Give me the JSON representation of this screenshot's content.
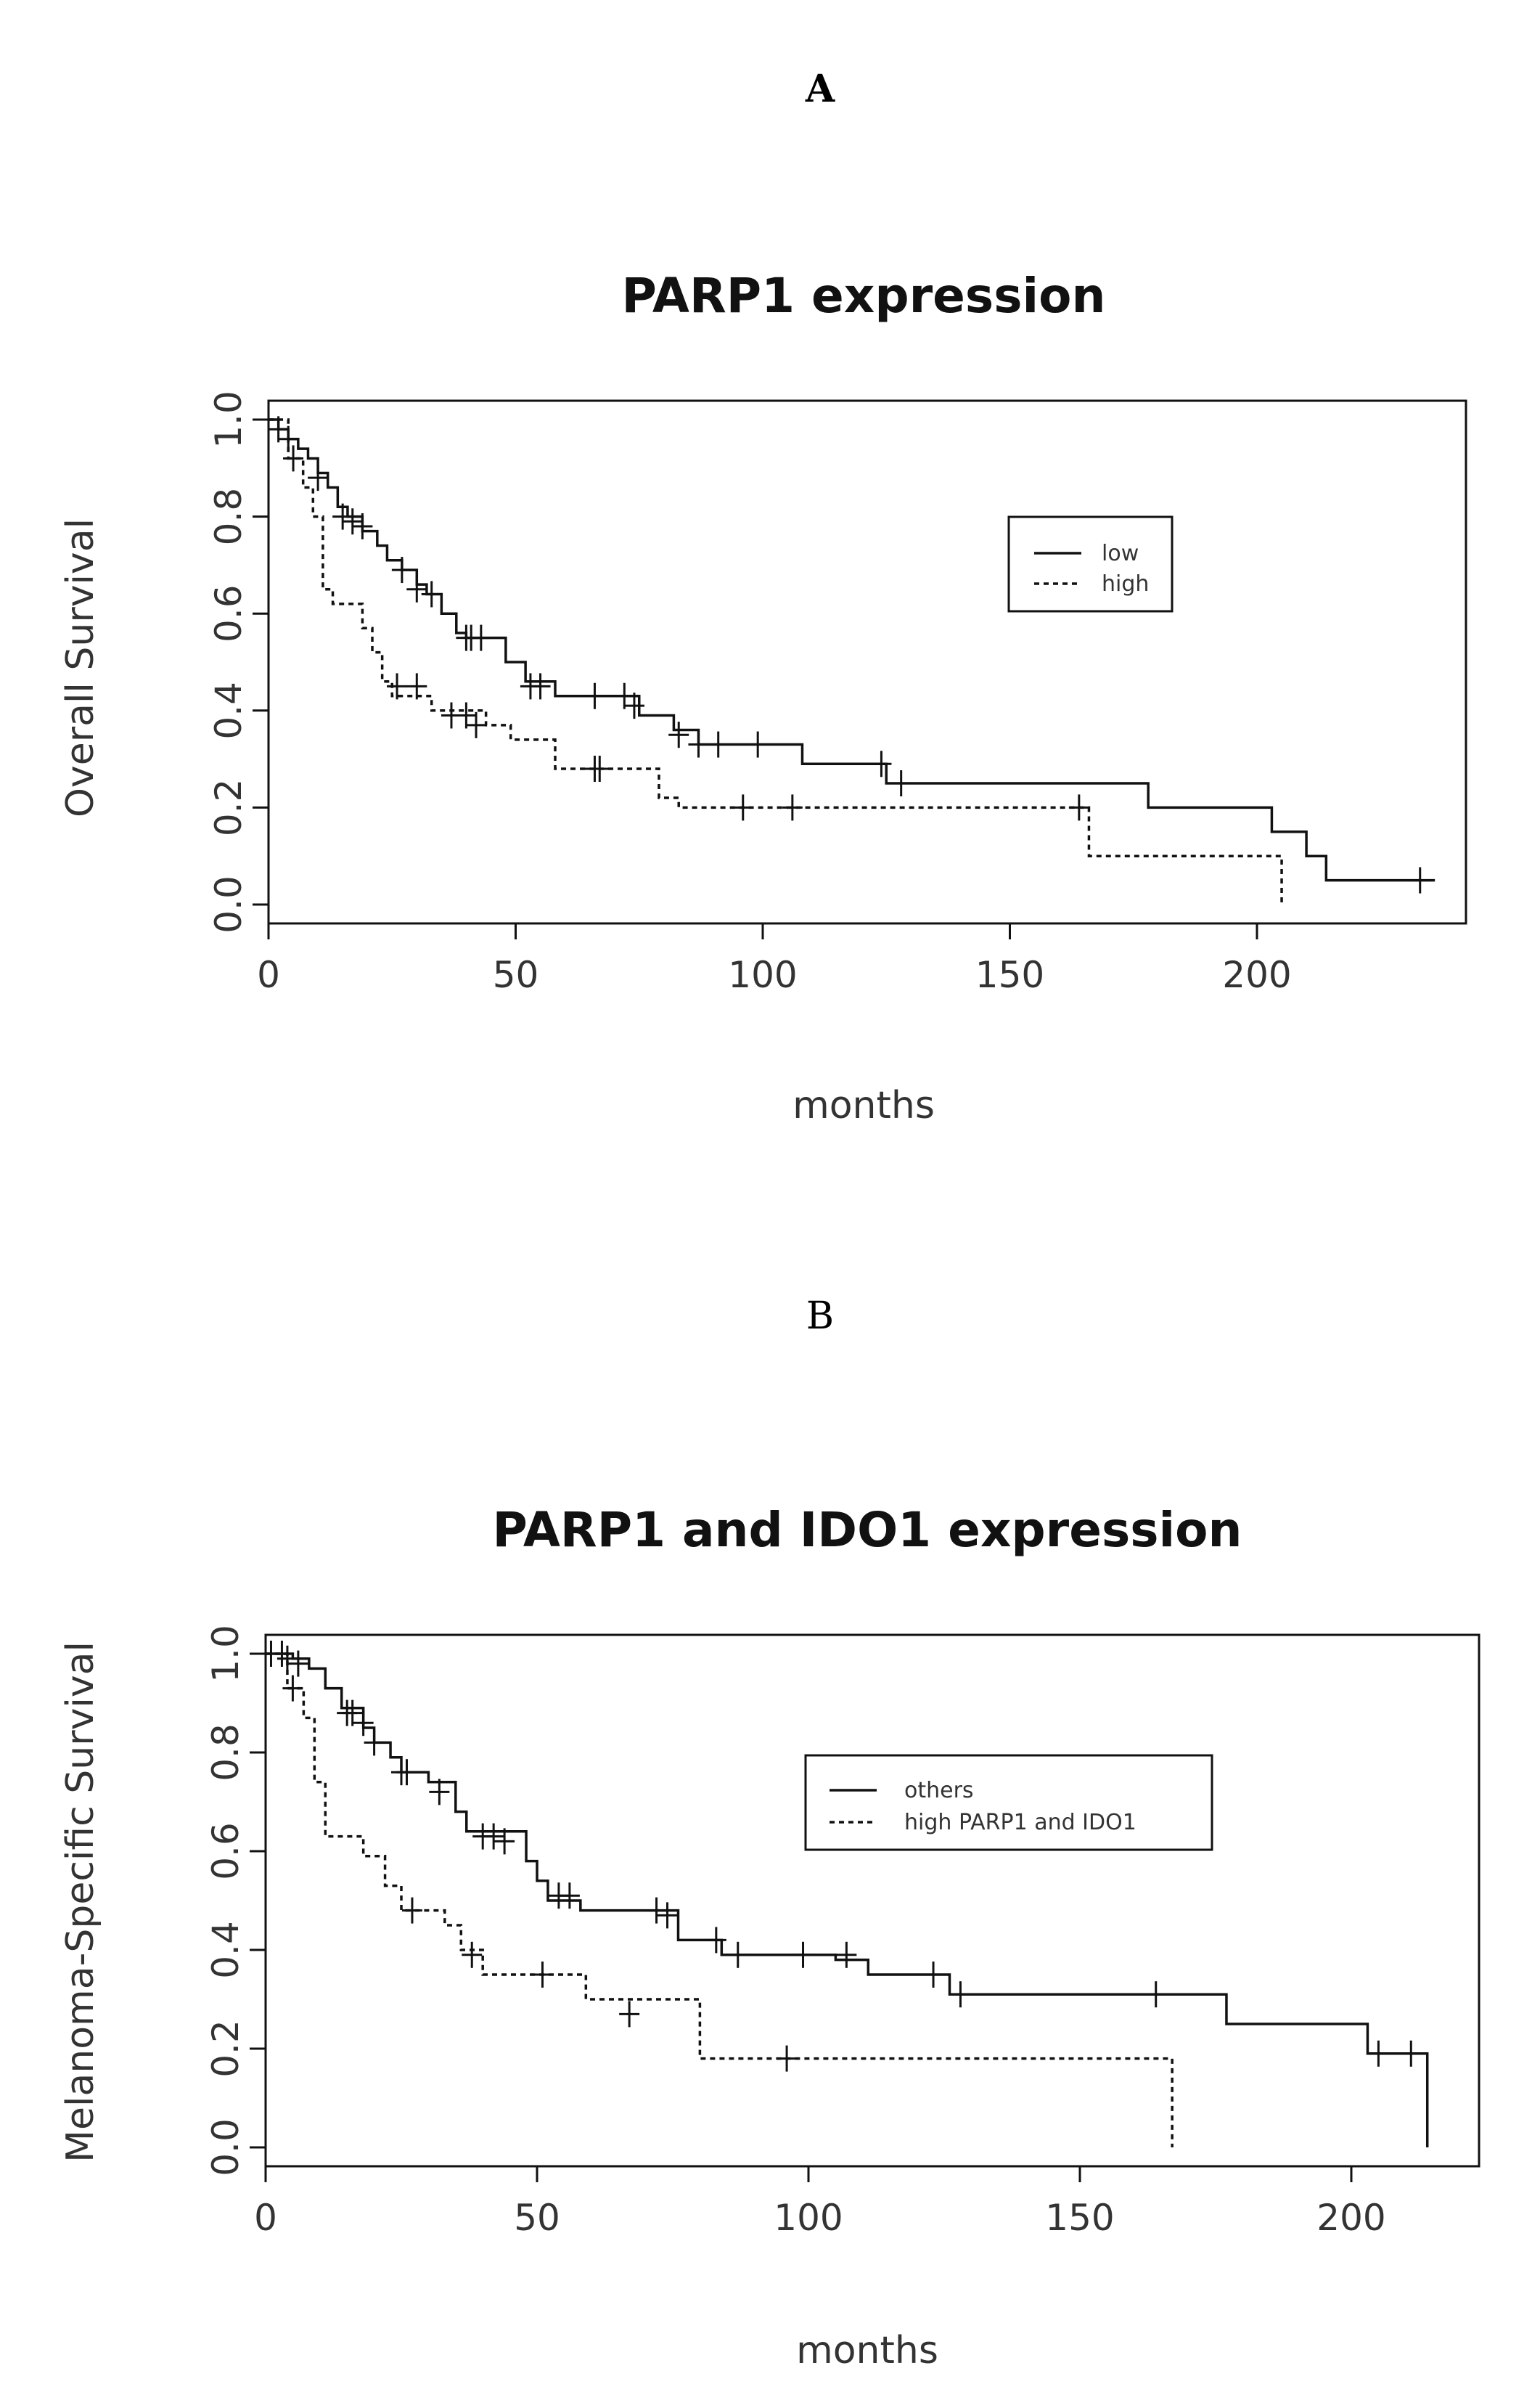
{
  "chart_data": [
    {
      "type": "line",
      "panel_label": "A",
      "title": "PARP1 expression",
      "xlabel": "months",
      "ylabel": "Overall Survival",
      "xlim": [
        0,
        240
      ],
      "ylim": [
        0,
        1.0
      ],
      "xticks": [
        0,
        50,
        100,
        150,
        200
      ],
      "yticks": [
        "0.0",
        "0.2",
        "0.4",
        "0.6",
        "0.8",
        "1.0"
      ],
      "legend_position": "top-right",
      "series": [
        {
          "name": "low",
          "style": "solid",
          "steps": [
            [
              0,
              1.0
            ],
            [
              2,
              0.98
            ],
            [
              4,
              0.96
            ],
            [
              6,
              0.94
            ],
            [
              8,
              0.92
            ],
            [
              10,
              0.89
            ],
            [
              12,
              0.86
            ],
            [
              14,
              0.82
            ],
            [
              16,
              0.8
            ],
            [
              19,
              0.77
            ],
            [
              22,
              0.74
            ],
            [
              24,
              0.71
            ],
            [
              27,
              0.69
            ],
            [
              30,
              0.66
            ],
            [
              32,
              0.64
            ],
            [
              35,
              0.6
            ],
            [
              38,
              0.56
            ],
            [
              40,
              0.55
            ],
            [
              48,
              0.5
            ],
            [
              52,
              0.46
            ],
            [
              58,
              0.43
            ],
            [
              75,
              0.39
            ],
            [
              82,
              0.36
            ],
            [
              87,
              0.33
            ],
            [
              108,
              0.29
            ],
            [
              125,
              0.25
            ],
            [
              178,
              0.2
            ],
            [
              203,
              0.15
            ],
            [
              210,
              0.1
            ],
            [
              214,
              0.05
            ],
            [
              236,
              0.05
            ]
          ],
          "censored": [
            [
              2,
              0.98
            ],
            [
              4,
              0.96
            ],
            [
              10,
              0.88
            ],
            [
              15,
              0.8
            ],
            [
              17,
              0.79
            ],
            [
              19,
              0.78
            ],
            [
              27,
              0.69
            ],
            [
              30,
              0.65
            ],
            [
              33,
              0.64
            ],
            [
              40,
              0.55
            ],
            [
              41,
              0.55
            ],
            [
              43,
              0.55
            ],
            [
              53,
              0.45
            ],
            [
              55,
              0.45
            ],
            [
              66,
              0.43
            ],
            [
              72,
              0.43
            ],
            [
              74,
              0.41
            ],
            [
              83,
              0.35
            ],
            [
              87,
              0.33
            ],
            [
              91,
              0.33
            ],
            [
              99,
              0.33
            ],
            [
              124,
              0.29
            ],
            [
              128,
              0.25
            ],
            [
              233,
              0.05
            ]
          ]
        },
        {
          "name": "high",
          "style": "dotted",
          "steps": [
            [
              0,
              1.0
            ],
            [
              4,
              0.92
            ],
            [
              7,
              0.86
            ],
            [
              9,
              0.8
            ],
            [
              11,
              0.65
            ],
            [
              13,
              0.62
            ],
            [
              19,
              0.57
            ],
            [
              21,
              0.52
            ],
            [
              23,
              0.46
            ],
            [
              25,
              0.43
            ],
            [
              33,
              0.4
            ],
            [
              44,
              0.37
            ],
            [
              49,
              0.34
            ],
            [
              58,
              0.28
            ],
            [
              79,
              0.22
            ],
            [
              83,
              0.2
            ],
            [
              163,
              0.2
            ],
            [
              166,
              0.1
            ],
            [
              205,
              0.1
            ],
            [
              205,
              0.0
            ]
          ],
          "censored": [
            [
              5,
              0.92
            ],
            [
              26,
              0.45
            ],
            [
              30,
              0.45
            ],
            [
              37,
              0.39
            ],
            [
              40,
              0.39
            ],
            [
              42,
              0.37
            ],
            [
              66,
              0.28
            ],
            [
              67,
              0.28
            ],
            [
              96,
              0.2
            ],
            [
              106,
              0.2
            ],
            [
              164,
              0.2
            ]
          ]
        }
      ]
    },
    {
      "type": "line",
      "panel_label": "B",
      "title": "PARP1 and IDO1 expression",
      "xlabel": "months",
      "ylabel": "Melanoma-Specific Survival",
      "xlim": [
        0,
        222
      ],
      "ylim": [
        0,
        1.0
      ],
      "xticks": [
        0,
        50,
        100,
        150,
        200
      ],
      "yticks": [
        "0.0",
        "0.2",
        "0.4",
        "0.6",
        "0.8",
        "1.0"
      ],
      "legend_position": "top-right",
      "series": [
        {
          "name": "others",
          "style": "solid",
          "steps": [
            [
              0,
              1.0
            ],
            [
              5,
              0.99
            ],
            [
              8,
              0.97
            ],
            [
              11,
              0.93
            ],
            [
              14,
              0.89
            ],
            [
              18,
              0.85
            ],
            [
              20,
              0.82
            ],
            [
              23,
              0.79
            ],
            [
              25,
              0.76
            ],
            [
              30,
              0.74
            ],
            [
              35,
              0.68
            ],
            [
              37,
              0.64
            ],
            [
              48,
              0.58
            ],
            [
              50,
              0.54
            ],
            [
              52,
              0.5
            ],
            [
              58,
              0.48
            ],
            [
              76,
              0.42
            ],
            [
              84,
              0.39
            ],
            [
              105,
              0.38
            ],
            [
              111,
              0.35
            ],
            [
              126,
              0.31
            ],
            [
              177,
              0.25
            ],
            [
              203,
              0.19
            ],
            [
              214,
              0.19
            ],
            [
              214,
              0.0
            ]
          ],
          "censored": [
            [
              1,
              1.0
            ],
            [
              3,
              1.0
            ],
            [
              4,
              0.99
            ],
            [
              6,
              0.98
            ],
            [
              15,
              0.88
            ],
            [
              16,
              0.88
            ],
            [
              18,
              0.86
            ],
            [
              20,
              0.82
            ],
            [
              25,
              0.76
            ],
            [
              26,
              0.76
            ],
            [
              32,
              0.72
            ],
            [
              40,
              0.63
            ],
            [
              42,
              0.63
            ],
            [
              44,
              0.62
            ],
            [
              54,
              0.51
            ],
            [
              56,
              0.51
            ],
            [
              72,
              0.48
            ],
            [
              74,
              0.47
            ],
            [
              83,
              0.42
            ],
            [
              87,
              0.39
            ],
            [
              99,
              0.39
            ],
            [
              107,
              0.39
            ],
            [
              123,
              0.35
            ],
            [
              128,
              0.31
            ],
            [
              164,
              0.31
            ],
            [
              205,
              0.19
            ],
            [
              211,
              0.19
            ]
          ]
        },
        {
          "name": "high PARP1 and IDO1",
          "style": "dotted",
          "steps": [
            [
              0,
              1.0
            ],
            [
              4,
              0.93
            ],
            [
              7,
              0.87
            ],
            [
              9,
              0.74
            ],
            [
              11,
              0.63
            ],
            [
              18,
              0.59
            ],
            [
              22,
              0.53
            ],
            [
              25,
              0.48
            ],
            [
              33,
              0.45
            ],
            [
              36,
              0.4
            ],
            [
              40,
              0.35
            ],
            [
              59,
              0.3
            ],
            [
              80,
              0.18
            ],
            [
              167,
              0.18
            ],
            [
              167,
              0.0
            ]
          ],
          "censored": [
            [
              5,
              0.93
            ],
            [
              27,
              0.48
            ],
            [
              38,
              0.39
            ],
            [
              51,
              0.35
            ],
            [
              67,
              0.27
            ],
            [
              96,
              0.18
            ]
          ]
        }
      ]
    }
  ]
}
